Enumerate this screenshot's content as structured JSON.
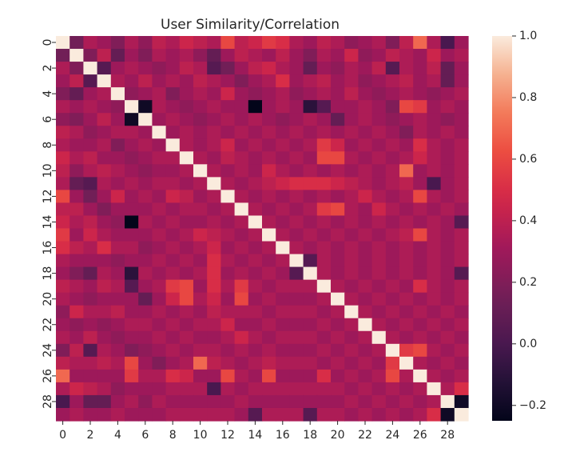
{
  "chart_data": {
    "type": "heatmap",
    "title": "User Similarity/Correlation",
    "xlabel": "",
    "ylabel": "",
    "n": 30,
    "x_tick_labels": [
      "0",
      "2",
      "4",
      "6",
      "8",
      "10",
      "12",
      "14",
      "16",
      "18",
      "20",
      "22",
      "24",
      "26",
      "28"
    ],
    "y_tick_labels": [
      "0",
      "2",
      "4",
      "6",
      "8",
      "10",
      "12",
      "14",
      "16",
      "18",
      "20",
      "22",
      "24",
      "26",
      "28"
    ],
    "colorbar": {
      "range": [
        -0.25,
        1.0
      ],
      "tick_labels": [
        "1.0",
        "0.8",
        "0.6",
        "0.4",
        "0.2",
        "0.0",
        "−0.2"
      ],
      "tick_values": [
        1.0,
        0.8,
        0.6,
        0.4,
        0.2,
        0.0,
        -0.2
      ]
    },
    "colormap": "rocket",
    "diagonal_value": 1.0,
    "matrix": [
      [
        1.0,
        0.15,
        0.35,
        0.3,
        0.2,
        0.35,
        0.25,
        0.4,
        0.35,
        0.45,
        0.4,
        0.35,
        0.6,
        0.4,
        0.45,
        0.55,
        0.5,
        0.35,
        0.3,
        0.4,
        0.35,
        0.25,
        0.3,
        0.35,
        0.2,
        0.4,
        0.7,
        0.35,
        0.0,
        0.3
      ],
      [
        0.15,
        1.0,
        0.2,
        0.4,
        0.1,
        0.3,
        0.2,
        0.35,
        0.3,
        0.35,
        0.25,
        0.1,
        0.3,
        0.4,
        0.35,
        0.3,
        0.4,
        0.3,
        0.2,
        0.35,
        0.3,
        0.45,
        0.25,
        0.3,
        0.4,
        0.35,
        0.3,
        0.45,
        0.3,
        0.35
      ],
      [
        0.35,
        0.2,
        1.0,
        0.05,
        0.3,
        0.35,
        0.3,
        0.25,
        0.3,
        0.4,
        0.35,
        0.05,
        0.15,
        0.3,
        0.4,
        0.45,
        0.35,
        0.3,
        0.1,
        0.3,
        0.25,
        0.35,
        0.3,
        0.4,
        0.05,
        0.35,
        0.3,
        0.4,
        0.1,
        0.3
      ],
      [
        0.3,
        0.4,
        0.05,
        1.0,
        0.35,
        0.3,
        0.4,
        0.3,
        0.35,
        0.3,
        0.4,
        0.35,
        0.3,
        0.2,
        0.3,
        0.35,
        0.5,
        0.3,
        0.35,
        0.4,
        0.3,
        0.35,
        0.25,
        0.3,
        0.35,
        0.4,
        0.3,
        0.35,
        0.1,
        0.3
      ],
      [
        0.2,
        0.1,
        0.3,
        0.35,
        1.0,
        0.25,
        0.3,
        0.35,
        0.2,
        0.3,
        0.35,
        0.3,
        0.45,
        0.3,
        0.25,
        0.3,
        0.35,
        0.25,
        0.3,
        0.35,
        0.3,
        0.4,
        0.3,
        0.25,
        0.3,
        0.35,
        0.3,
        0.25,
        0.3,
        0.35
      ],
      [
        0.35,
        0.3,
        0.35,
        0.3,
        0.25,
        1.0,
        -0.2,
        0.35,
        0.3,
        0.25,
        0.3,
        0.35,
        0.3,
        0.3,
        -0.25,
        0.3,
        0.35,
        0.3,
        -0.1,
        0.05,
        0.3,
        0.3,
        0.35,
        0.3,
        0.2,
        0.6,
        0.55,
        0.3,
        0.35,
        0.3
      ],
      [
        0.25,
        0.2,
        0.3,
        0.4,
        0.3,
        -0.2,
        1.0,
        0.3,
        0.35,
        0.3,
        0.25,
        0.3,
        0.35,
        0.3,
        0.35,
        0.3,
        0.25,
        0.3,
        0.35,
        0.3,
        0.1,
        0.3,
        0.35,
        0.3,
        0.25,
        0.3,
        0.35,
        0.3,
        0.25,
        0.3
      ],
      [
        0.4,
        0.35,
        0.25,
        0.3,
        0.35,
        0.35,
        0.3,
        1.0,
        0.3,
        0.35,
        0.3,
        0.35,
        0.3,
        0.35,
        0.3,
        0.35,
        0.3,
        0.35,
        0.3,
        0.35,
        0.3,
        0.35,
        0.3,
        0.35,
        0.3,
        0.2,
        0.35,
        0.3,
        0.35,
        0.3
      ],
      [
        0.35,
        0.3,
        0.3,
        0.35,
        0.2,
        0.3,
        0.35,
        0.3,
        1.0,
        0.35,
        0.3,
        0.35,
        0.45,
        0.3,
        0.35,
        0.3,
        0.35,
        0.3,
        0.35,
        0.55,
        0.45,
        0.3,
        0.35,
        0.3,
        0.35,
        0.3,
        0.5,
        0.35,
        0.3,
        0.35
      ],
      [
        0.45,
        0.35,
        0.4,
        0.3,
        0.3,
        0.25,
        0.3,
        0.35,
        0.35,
        1.0,
        0.35,
        0.3,
        0.4,
        0.35,
        0.3,
        0.35,
        0.3,
        0.35,
        0.3,
        0.6,
        0.6,
        0.35,
        0.3,
        0.35,
        0.3,
        0.35,
        0.45,
        0.35,
        0.3,
        0.35
      ],
      [
        0.4,
        0.25,
        0.35,
        0.4,
        0.35,
        0.3,
        0.25,
        0.3,
        0.3,
        0.35,
        1.0,
        0.35,
        0.3,
        0.35,
        0.3,
        0.45,
        0.35,
        0.3,
        0.35,
        0.3,
        0.35,
        0.3,
        0.35,
        0.3,
        0.35,
        0.7,
        0.3,
        0.35,
        0.3,
        0.35
      ],
      [
        0.35,
        0.1,
        0.05,
        0.35,
        0.3,
        0.35,
        0.3,
        0.35,
        0.35,
        0.3,
        0.35,
        1.0,
        0.35,
        0.3,
        0.35,
        0.4,
        0.45,
        0.5,
        0.5,
        0.5,
        0.45,
        0.4,
        0.35,
        0.3,
        0.35,
        0.4,
        0.3,
        0.0,
        0.3,
        0.35
      ],
      [
        0.6,
        0.3,
        0.15,
        0.3,
        0.45,
        0.3,
        0.35,
        0.3,
        0.45,
        0.4,
        0.3,
        0.35,
        1.0,
        0.35,
        0.3,
        0.35,
        0.3,
        0.35,
        0.3,
        0.35,
        0.3,
        0.35,
        0.45,
        0.35,
        0.3,
        0.35,
        0.6,
        0.35,
        0.3,
        0.35
      ],
      [
        0.4,
        0.4,
        0.3,
        0.2,
        0.3,
        0.3,
        0.3,
        0.35,
        0.3,
        0.35,
        0.35,
        0.3,
        0.35,
        1.0,
        0.35,
        0.3,
        0.35,
        0.3,
        0.35,
        0.55,
        0.6,
        0.35,
        0.3,
        0.45,
        0.35,
        0.3,
        0.35,
        0.3,
        0.35,
        0.3
      ],
      [
        0.45,
        0.35,
        0.4,
        0.3,
        0.25,
        -0.25,
        0.35,
        0.3,
        0.35,
        0.3,
        0.3,
        0.35,
        0.3,
        0.35,
        1.0,
        0.35,
        0.3,
        0.35,
        0.3,
        0.35,
        0.3,
        0.35,
        0.3,
        0.35,
        0.3,
        0.35,
        0.3,
        0.35,
        0.3,
        0.05
      ],
      [
        0.55,
        0.3,
        0.45,
        0.35,
        0.3,
        0.3,
        0.3,
        0.35,
        0.3,
        0.35,
        0.45,
        0.4,
        0.35,
        0.3,
        0.35,
        1.0,
        0.35,
        0.3,
        0.35,
        0.3,
        0.35,
        0.3,
        0.35,
        0.3,
        0.35,
        0.4,
        0.6,
        0.35,
        0.3,
        0.35
      ],
      [
        0.5,
        0.4,
        0.35,
        0.5,
        0.35,
        0.35,
        0.25,
        0.3,
        0.35,
        0.3,
        0.35,
        0.45,
        0.3,
        0.35,
        0.3,
        0.35,
        1.0,
        0.35,
        0.3,
        0.35,
        0.3,
        0.35,
        0.3,
        0.35,
        0.3,
        0.35,
        0.3,
        0.35,
        0.3,
        0.35
      ],
      [
        0.35,
        0.3,
        0.3,
        0.3,
        0.25,
        0.3,
        0.3,
        0.35,
        0.3,
        0.35,
        0.3,
        0.5,
        0.35,
        0.3,
        0.35,
        0.3,
        0.35,
        1.0,
        0.05,
        0.35,
        0.3,
        0.35,
        0.3,
        0.35,
        0.3,
        0.35,
        0.3,
        0.35,
        0.3,
        0.35
      ],
      [
        0.3,
        0.2,
        0.1,
        0.35,
        0.3,
        -0.1,
        0.35,
        0.3,
        0.35,
        0.3,
        0.35,
        0.5,
        0.3,
        0.35,
        0.3,
        0.35,
        0.3,
        0.05,
        1.0,
        0.35,
        0.3,
        0.35,
        0.3,
        0.35,
        0.3,
        0.35,
        0.3,
        0.35,
        0.3,
        0.05
      ],
      [
        0.4,
        0.35,
        0.3,
        0.4,
        0.35,
        0.05,
        0.3,
        0.35,
        0.55,
        0.6,
        0.3,
        0.5,
        0.35,
        0.55,
        0.35,
        0.3,
        0.35,
        0.35,
        0.35,
        1.0,
        0.35,
        0.3,
        0.35,
        0.3,
        0.35,
        0.3,
        0.5,
        0.35,
        0.3,
        0.35
      ],
      [
        0.35,
        0.3,
        0.25,
        0.3,
        0.3,
        0.3,
        0.1,
        0.3,
        0.45,
        0.6,
        0.35,
        0.45,
        0.3,
        0.6,
        0.3,
        0.35,
        0.3,
        0.3,
        0.3,
        0.35,
        1.0,
        0.35,
        0.3,
        0.35,
        0.3,
        0.35,
        0.3,
        0.35,
        0.3,
        0.35
      ],
      [
        0.25,
        0.45,
        0.35,
        0.35,
        0.4,
        0.3,
        0.3,
        0.35,
        0.3,
        0.35,
        0.3,
        0.4,
        0.35,
        0.35,
        0.35,
        0.3,
        0.35,
        0.35,
        0.35,
        0.3,
        0.35,
        1.0,
        0.35,
        0.3,
        0.35,
        0.3,
        0.35,
        0.3,
        0.35,
        0.3
      ],
      [
        0.3,
        0.25,
        0.3,
        0.25,
        0.3,
        0.35,
        0.35,
        0.3,
        0.35,
        0.3,
        0.35,
        0.35,
        0.45,
        0.3,
        0.3,
        0.35,
        0.3,
        0.3,
        0.3,
        0.35,
        0.3,
        0.35,
        1.0,
        0.35,
        0.3,
        0.35,
        0.3,
        0.35,
        0.3,
        0.35
      ],
      [
        0.35,
        0.3,
        0.4,
        0.3,
        0.25,
        0.3,
        0.3,
        0.35,
        0.3,
        0.35,
        0.3,
        0.3,
        0.35,
        0.45,
        0.35,
        0.3,
        0.35,
        0.35,
        0.35,
        0.3,
        0.35,
        0.3,
        0.35,
        1.0,
        0.35,
        0.3,
        0.35,
        0.3,
        0.35,
        0.3
      ],
      [
        0.2,
        0.4,
        0.05,
        0.35,
        0.3,
        0.2,
        0.25,
        0.3,
        0.35,
        0.3,
        0.35,
        0.35,
        0.3,
        0.35,
        0.3,
        0.35,
        0.3,
        0.3,
        0.3,
        0.35,
        0.3,
        0.35,
        0.3,
        0.35,
        1.0,
        0.55,
        0.6,
        0.35,
        0.3,
        0.35
      ],
      [
        0.4,
        0.35,
        0.35,
        0.4,
        0.35,
        0.6,
        0.3,
        0.2,
        0.3,
        0.35,
        0.7,
        0.4,
        0.35,
        0.3,
        0.35,
        0.4,
        0.35,
        0.35,
        0.35,
        0.3,
        0.35,
        0.3,
        0.35,
        0.3,
        0.55,
        1.0,
        0.35,
        0.3,
        0.35,
        0.3
      ],
      [
        0.7,
        0.3,
        0.3,
        0.3,
        0.3,
        0.55,
        0.35,
        0.35,
        0.5,
        0.45,
        0.3,
        0.3,
        0.6,
        0.35,
        0.3,
        0.6,
        0.3,
        0.3,
        0.3,
        0.5,
        0.3,
        0.35,
        0.3,
        0.35,
        0.6,
        0.35,
        1.0,
        0.35,
        0.3,
        0.35
      ],
      [
        0.35,
        0.45,
        0.4,
        0.35,
        0.25,
        0.3,
        0.3,
        0.3,
        0.35,
        0.35,
        0.35,
        0.0,
        0.35,
        0.3,
        0.35,
        0.35,
        0.35,
        0.35,
        0.35,
        0.35,
        0.35,
        0.3,
        0.35,
        0.3,
        0.35,
        0.3,
        0.35,
        1.0,
        0.35,
        0.5
      ],
      [
        0.0,
        0.3,
        0.1,
        0.1,
        0.3,
        0.35,
        0.25,
        0.35,
        0.3,
        0.3,
        0.3,
        0.3,
        0.3,
        0.35,
        0.3,
        0.3,
        0.3,
        0.3,
        0.3,
        0.3,
        0.3,
        0.35,
        0.3,
        0.35,
        0.3,
        0.35,
        0.3,
        0.35,
        1.0,
        -0.2
      ],
      [
        0.3,
        0.35,
        0.3,
        0.3,
        0.35,
        0.3,
        0.3,
        0.3,
        0.35,
        0.35,
        0.35,
        0.35,
        0.35,
        0.3,
        0.05,
        0.35,
        0.35,
        0.35,
        0.05,
        0.35,
        0.35,
        0.3,
        0.35,
        0.3,
        0.35,
        0.3,
        0.35,
        0.5,
        -0.2,
        1.0
      ]
    ]
  }
}
